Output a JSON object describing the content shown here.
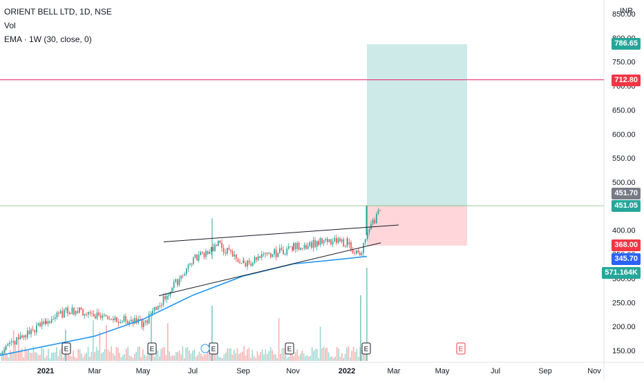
{
  "legend": {
    "symbol": "ORIENT BELL LTD, 1D, NSE",
    "volume": "Vol",
    "ema": "EMA · 1W (30, close, 0)"
  },
  "colors": {
    "up": "#26a69a",
    "down": "#ef5350",
    "ema": "#2196f3",
    "trendline": "#131722",
    "target_zone": "#b2dfdb",
    "stop_zone": "#ffcdd2",
    "hline": "#e91e63",
    "last_price_line": "#4caf50",
    "label_gray": "#787b86",
    "label_green": "#26a69a",
    "label_red": "#f23645",
    "label_blue": "#2962ff"
  },
  "currency": "INR",
  "chart_data": {
    "type": "candlestick",
    "x_ticks": [
      "2021",
      "Mar",
      "May",
      "Jul",
      "Sep",
      "Nov",
      "2022",
      "Mar",
      "May",
      "Jul",
      "Sep",
      "Nov"
    ],
    "y_ticks": [
      "850.00",
      "800.00",
      "750.00",
      "700.00",
      "650.00",
      "600.00",
      "550.00",
      "500.00",
      "450.00",
      "400.00",
      "350.00",
      "300.00",
      "250.00",
      "200.00",
      "150.00"
    ],
    "price_labels": {
      "target": "786.65",
      "resistance_line": "712.80",
      "current_gray": "451.70",
      "current_green": "451.05",
      "stop": "368.00",
      "ema_value": "345.70",
      "volume": "571.164K"
    },
    "earnings_markers": [
      "E",
      "E",
      "E",
      "E",
      "E",
      "E"
    ],
    "approx_closes": [
      {
        "date": "2020-12",
        "close": 150
      },
      {
        "date": "2021-01",
        "close": 210
      },
      {
        "date": "2021-02",
        "close": 235
      },
      {
        "date": "2021-03",
        "close": 225
      },
      {
        "date": "2021-04",
        "close": 205
      },
      {
        "date": "2021-05",
        "close": 270
      },
      {
        "date": "2021-06",
        "close": 340
      },
      {
        "date": "2021-07",
        "close": 370
      },
      {
        "date": "2021-08",
        "close": 330
      },
      {
        "date": "2021-09",
        "close": 365
      },
      {
        "date": "2021-10",
        "close": 375
      },
      {
        "date": "2021-11",
        "close": 375
      },
      {
        "date": "2021-12",
        "close": 345
      },
      {
        "date": "2022-01",
        "close": 390
      },
      {
        "date": "2022-01-end",
        "close": 451.05
      }
    ],
    "ema_points": [
      {
        "date": "2020-12",
        "value": 140
      },
      {
        "date": "2021-03",
        "value": 180
      },
      {
        "date": "2021-05",
        "value": 215
      },
      {
        "date": "2021-07",
        "value": 265
      },
      {
        "date": "2021-09",
        "value": 305
      },
      {
        "date": "2021-11",
        "value": 330
      },
      {
        "date": "2021-12",
        "value": 338
      },
      {
        "date": "2022-01-end",
        "value": 345.7
      }
    ],
    "target_zone": {
      "from": 451.05,
      "to": 786.65
    },
    "stop_zone": {
      "from": 368.0,
      "to": 451.05
    },
    "horizontal_line": 712.8
  }
}
